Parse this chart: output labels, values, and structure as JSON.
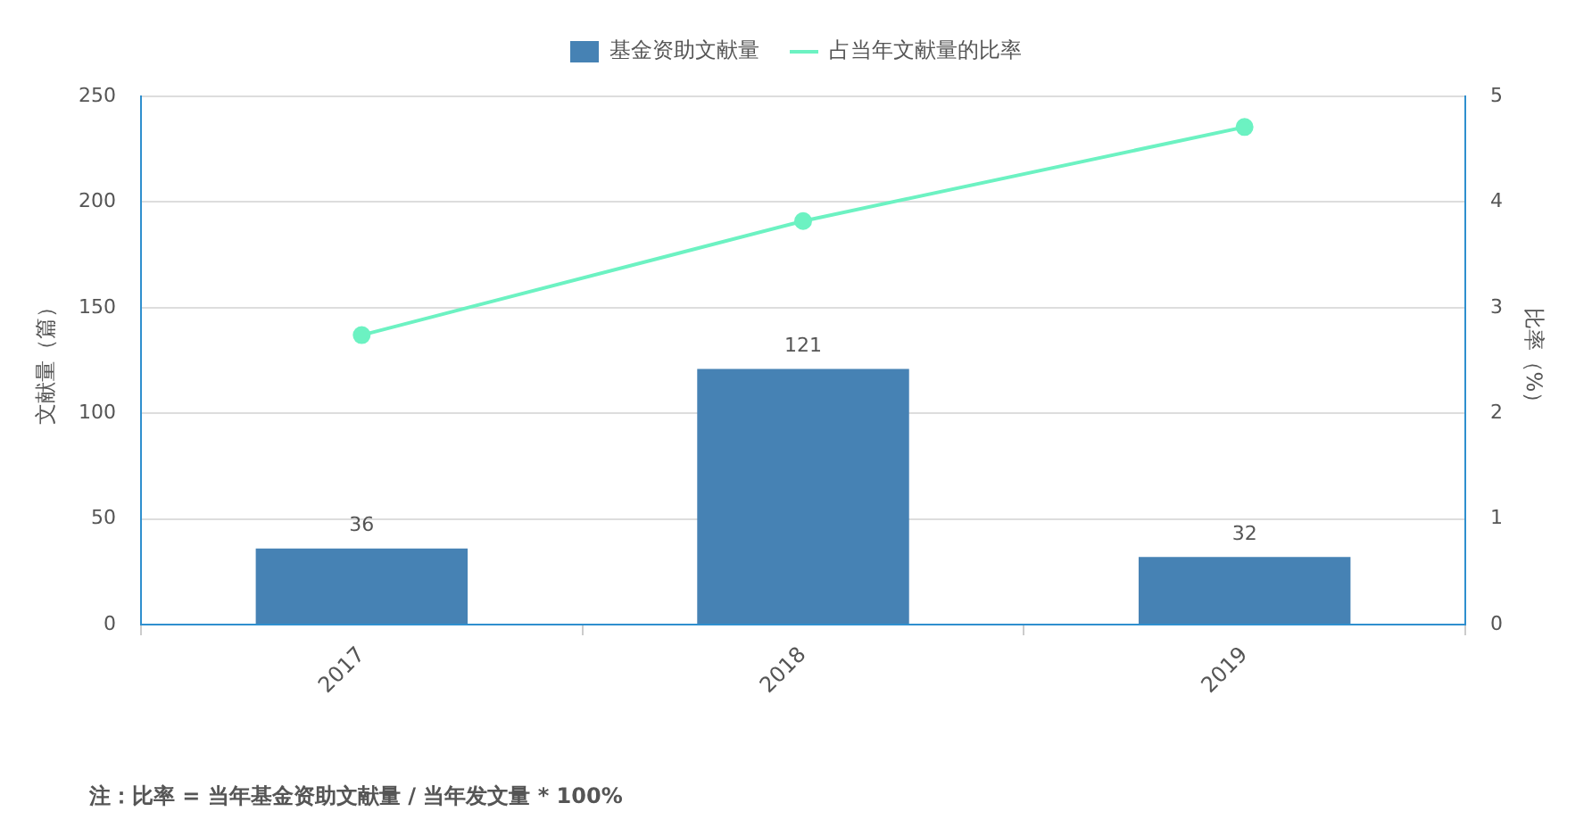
{
  "chart_data": {
    "type": "bar",
    "categories": [
      "2017",
      "2018",
      "2019"
    ],
    "series": [
      {
        "name": "基金资助文献量",
        "color": "#4682b4",
        "values": [
          36,
          121,
          32
        ],
        "value_labels": [
          "36",
          "121",
          "32"
        ]
      },
      {
        "name": "占当年文献量的比率",
        "type": "line",
        "axis": "y2",
        "color": "#6cf2c2",
        "values": [
          2.74,
          3.82,
          4.71
        ],
        "marker": "circle"
      }
    ],
    "ylabel": "文献量（篇）",
    "y2label": "比率（%）",
    "ylim": [
      0,
      250
    ],
    "yticks": [
      0,
      50,
      100,
      150,
      200,
      250
    ],
    "y2lim": [
      0,
      5
    ],
    "y2ticks": [
      0,
      1,
      2,
      3,
      4,
      5
    ],
    "grid": "y",
    "legend": "top",
    "annotations": [
      "注：比率 = 当年基金资助文献量 / 当年发文量 * 100%"
    ]
  }
}
